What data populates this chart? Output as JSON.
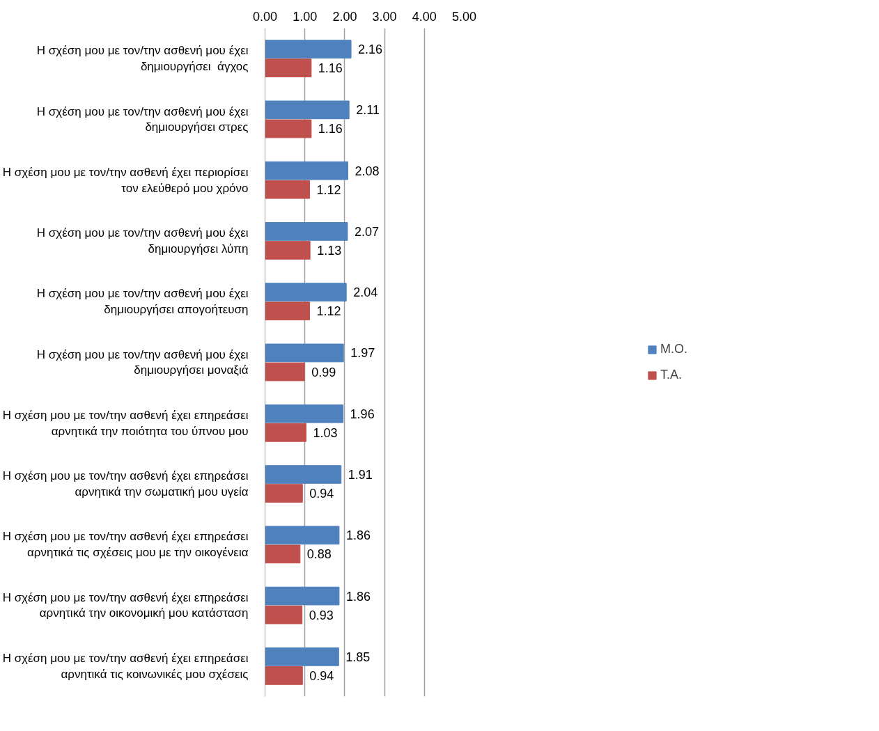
{
  "chart_data": {
    "type": "bar",
    "orientation": "horizontal",
    "categories": [
      "Η σχέση μου με τον/την ασθενή μου έχει δημιουργήσει  άγχος",
      "Η σχέση μου με τον/την ασθενή μου έχει δημιουργήσει στρες",
      "Η σχέση μου με τον/την ασθενή έχει περιορίσει τον ελεύθερό μου χρόνο",
      "Η σχέση μου με τον/την ασθενή μου έχει δημιουργήσει λύπη",
      "Η σχέση μου με τον/την ασθενή μου έχει δημιουργήσει απογοήτευση",
      "Η σχέση μου με τον/την ασθενή μου έχει δημιουργήσει μοναξιά",
      "Η σχέση μου με τον/την ασθενή έχει επηρεάσει αρνητικά την ποιότητα του ύπνου μου",
      "Η σχέση μου με τον/την ασθενή έχει επηρεάσει αρνητικά την σωματική μου υγεία",
      "Η σχέση μου με τον/την ασθενή έχει επηρεάσει αρνητικά τις σχέσεις μου με την οικογένεια",
      "Η σχέση μου με τον/την ασθενή έχει επηρεάσει αρνητικά την οικονομική μου κατάσταση",
      "Η σχέση μου με τον/την ασθενή έχει επηρεάσει αρνητικά τις κοινωνικές μου σχέσεις"
    ],
    "series": [
      {
        "name": "Μ.Ο.",
        "color": "#4f81bd",
        "values": [
          2.16,
          2.11,
          2.08,
          2.07,
          2.04,
          1.97,
          1.96,
          1.91,
          1.86,
          1.86,
          1.85
        ]
      },
      {
        "name": "Τ.Α.",
        "color": "#c0504d",
        "values": [
          1.16,
          1.16,
          1.12,
          1.13,
          1.12,
          0.99,
          1.03,
          0.94,
          0.88,
          0.93,
          0.94
        ]
      }
    ],
    "xlim": [
      0,
      5
    ],
    "xticks": [
      {
        "value": 0,
        "label": "0.00"
      },
      {
        "value": 1,
        "label": "1.00"
      },
      {
        "value": 2,
        "label": "2.00"
      },
      {
        "value": 3,
        "label": "3.00"
      },
      {
        "value": 4,
        "label": "4.00"
      },
      {
        "value": 5,
        "label": "5.00"
      }
    ],
    "grid": "x",
    "legend": "right",
    "data_labels": true
  }
}
